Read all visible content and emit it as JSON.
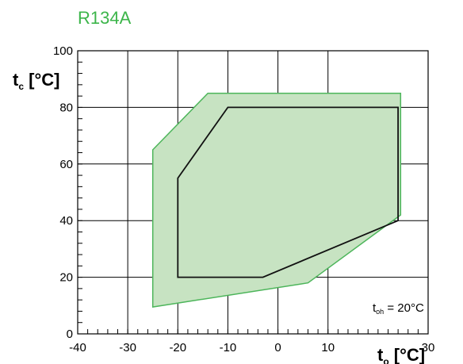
{
  "chart_data": {
    "type": "area",
    "title": "R134A",
    "xlabel_main": "t",
    "xlabel_sub": "o",
    "xlabel_unit": " [°C]",
    "ylabel_main": "t",
    "ylabel_sub": "c",
    "ylabel_unit": " [°C]",
    "xlim": [
      -40,
      30
    ],
    "ylim": [
      0,
      100
    ],
    "xticks": [
      -40,
      -30,
      -20,
      -10,
      0,
      10,
      30
    ],
    "yticks": [
      0,
      20,
      40,
      60,
      80,
      100
    ],
    "grid": true,
    "annotation": {
      "main": "t",
      "sub": "oh",
      "text": " = 20°C"
    },
    "colors": {
      "fill": "#c7e3c2",
      "envelope_stroke": "#4cb55a",
      "inner_stroke": "#111111",
      "title": "#3cb54a"
    },
    "series": [
      {
        "role": "outer-filled-envelope",
        "points": [
          [
            -25,
            65
          ],
          [
            -14,
            85
          ],
          [
            24.5,
            85
          ],
          [
            24.5,
            42
          ],
          [
            6,
            18
          ],
          [
            -25,
            9.5
          ]
        ]
      },
      {
        "role": "inner-envelope-line",
        "points": [
          [
            -20,
            55
          ],
          [
            -10,
            80
          ],
          [
            24,
            80
          ],
          [
            24,
            40
          ],
          [
            -3,
            20
          ],
          [
            -20,
            20
          ]
        ]
      }
    ]
  }
}
